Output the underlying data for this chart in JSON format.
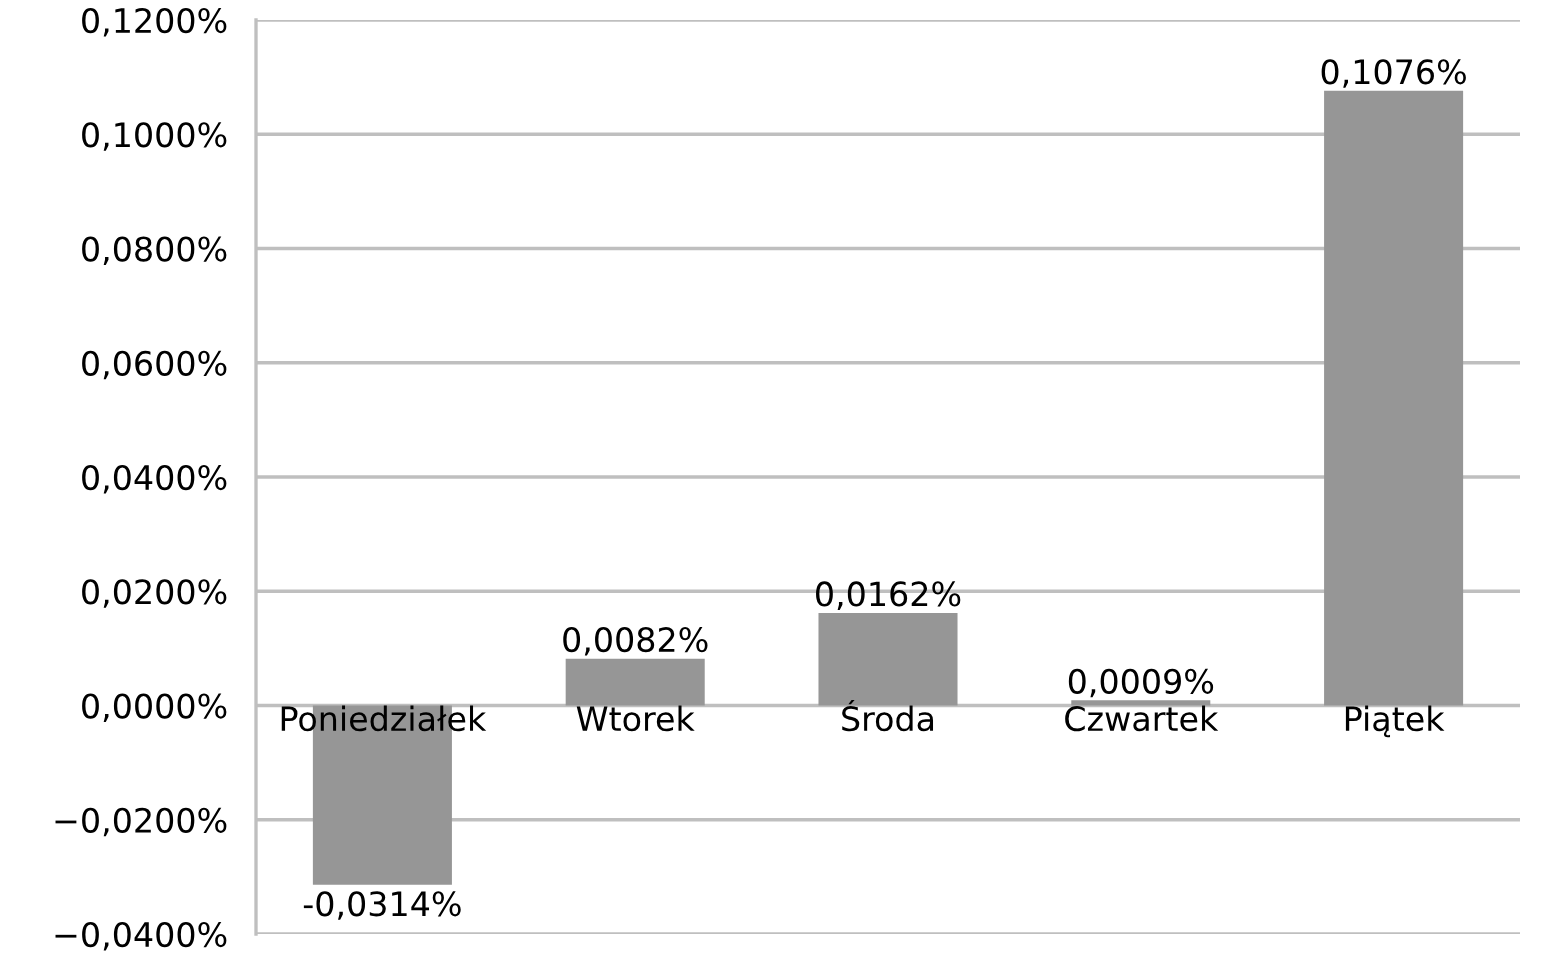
{
  "chart_data": {
    "type": "bar",
    "categories": [
      "Poniedziałek",
      "Wtorek",
      "Środa",
      "Czwartek",
      "Piątek"
    ],
    "values": [
      -0.0314,
      0.0082,
      0.0162,
      0.0009,
      0.1076
    ],
    "value_labels": [
      "-0,0314%",
      "0,0082%",
      "0,0162%",
      "0,0009%",
      "0,1076%"
    ],
    "color": "#969696",
    "ylim": [
      -0.04,
      0.12
    ],
    "yticks": [
      {
        "value": -0.04,
        "label": "−0,0400%"
      },
      {
        "value": -0.02,
        "label": "−0,0200%"
      },
      {
        "value": 0,
        "label": "0,0000%"
      },
      {
        "value": 0.02,
        "label": "0,0200%"
      },
      {
        "value": 0.04,
        "label": "0,0400%"
      },
      {
        "value": 0.06,
        "label": "0,0600%"
      },
      {
        "value": 0.08,
        "label": "0,0800%"
      },
      {
        "value": 0.1,
        "label": "0,1000%"
      },
      {
        "value": 0.12,
        "label": "0,1200%"
      }
    ],
    "grid": "y"
  }
}
